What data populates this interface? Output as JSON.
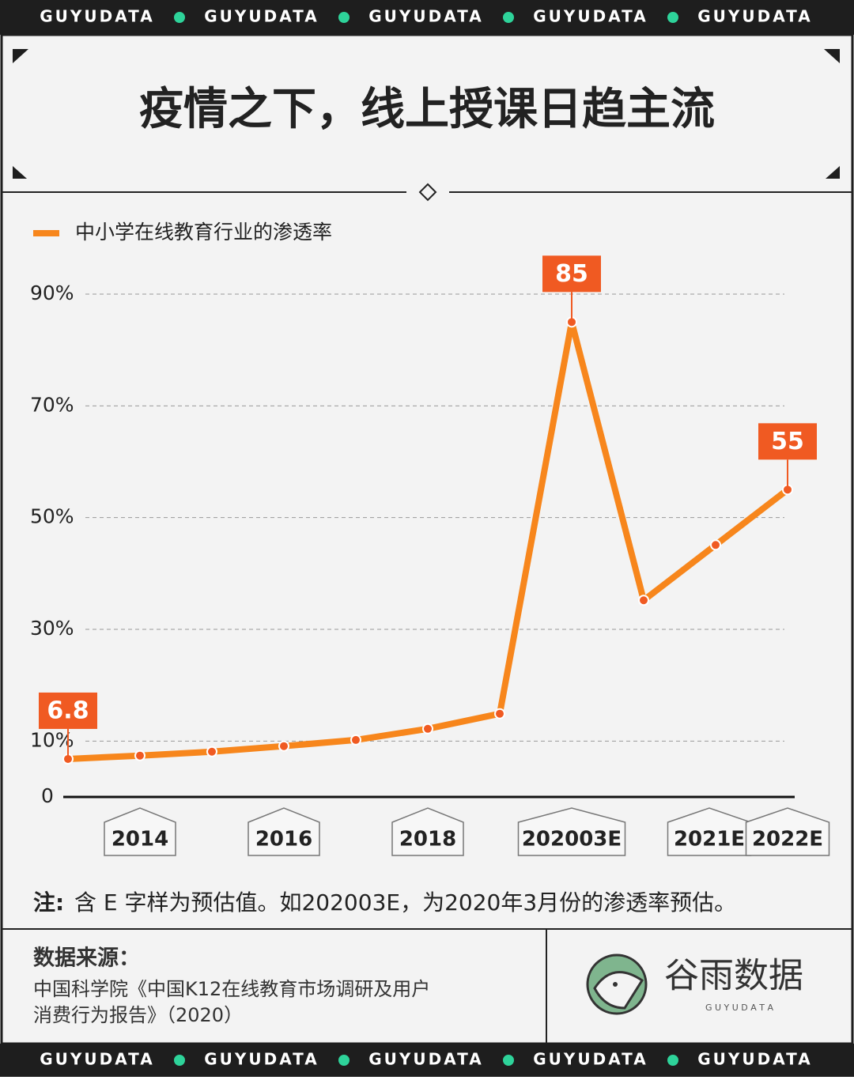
{
  "top_banner": [
    "GUYUDATA",
    "GUYUDATA",
    "GUYUDATA",
    "GUYUDATA",
    "GUYUDATA"
  ],
  "bottom_banner": [
    "GUYUDATA",
    "GUYUDATA",
    "GUYUDATA",
    "GUYUDATA",
    "GUYUDATA"
  ],
  "chart_data": {
    "type": "line",
    "title": "疫情之下，线上授课日趋主流",
    "categories": [
      null,
      "2014",
      null,
      "2016",
      null,
      "2018",
      null,
      "202003E",
      null,
      "2021E",
      "2022E"
    ],
    "series": [
      {
        "name": "中小学在线教育行业的渗透率",
        "color": "#f7861c",
        "values": [
          6.8,
          7.4,
          8.1,
          9.1,
          10.2,
          12.2,
          14.9,
          85,
          35.2,
          45.1,
          55
        ],
        "value_labels": [
          "6.8",
          null,
          null,
          null,
          null,
          null,
          null,
          "85",
          null,
          null,
          "55"
        ]
      }
    ],
    "ylim": [
      0,
      90
    ],
    "yticks": [
      0,
      {
        "value": 10,
        "label": "10%"
      },
      {
        "value": 30,
        "label": "30%"
      },
      {
        "value": 50,
        "label": "50%"
      },
      {
        "value": 70,
        "label": "70%"
      },
      {
        "value": 90,
        "label": "90%"
      }
    ],
    "grid": true,
    "legend": "top-left"
  },
  "note": {
    "label": "注:",
    "text": "含 E 字样为预估值。如202003E，为2020年3月份的渗透率预估。"
  },
  "source": {
    "title": "数据来源：",
    "lines": [
      "中国科学院《中国K12在线教育市场调研及用户",
      "消费行为报告》（2020）"
    ]
  },
  "logo": {
    "name": "谷雨数据",
    "sub": "G U Y U D A T A"
  }
}
